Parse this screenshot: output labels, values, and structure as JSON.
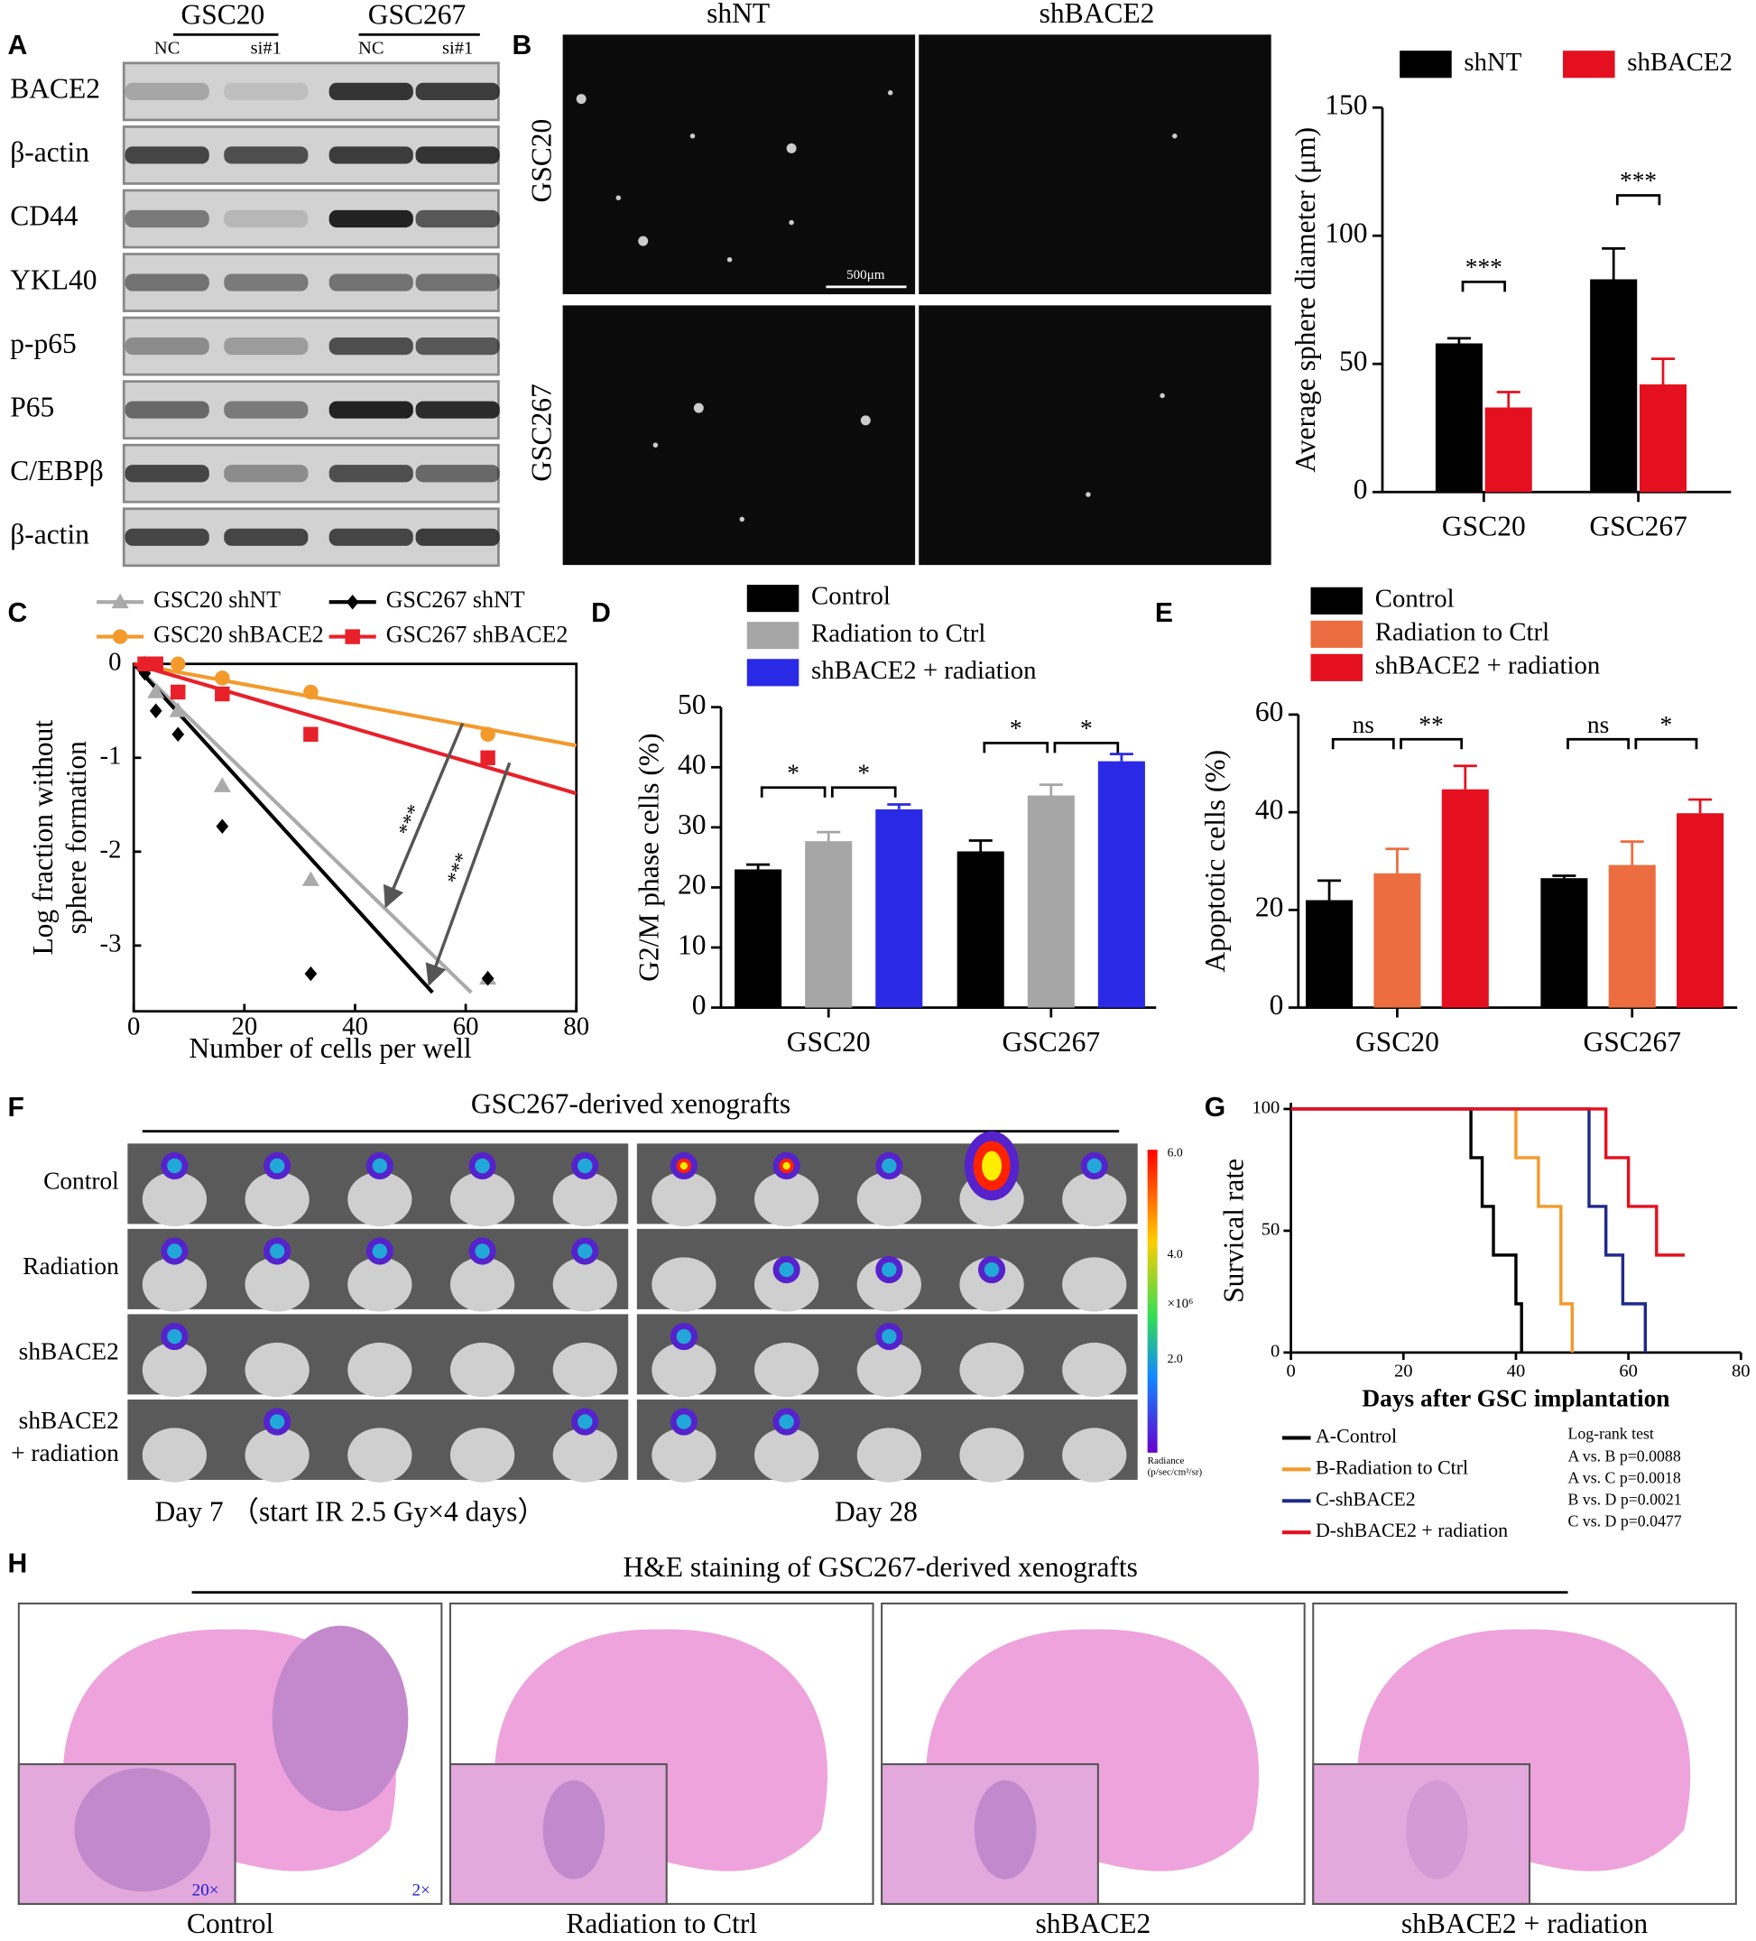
{
  "panel_labels": [
    "A",
    "B",
    "C",
    "D",
    "E",
    "F",
    "G",
    "H"
  ],
  "blot": {
    "groups": [
      "GSC20",
      "GSC267"
    ],
    "lanes": [
      "NC",
      "si#1",
      "NC",
      "si#1"
    ],
    "rows": [
      "BACE2",
      "β-actin",
      "CD44",
      "YKL40",
      "p-p65",
      "P65",
      "C/EBPβ",
      "β-actin"
    ]
  },
  "sphere_images": {
    "columns": [
      "shNT",
      "shBACE2"
    ],
    "rows": [
      "GSC20",
      "GSC267"
    ],
    "scale_bar": "500μm"
  },
  "xenograft": {
    "title": "GSC267-derived xenografts",
    "row_labels": [
      [
        "Control"
      ],
      [
        "Radiation"
      ],
      [
        "shBACE2"
      ],
      [
        "shBACE2",
        "+ radiation"
      ]
    ],
    "day_labels": [
      "Day 7 （start IR 2.5 Gy×4 days）",
      "Day 28"
    ],
    "colorbar": {
      "ticks": [
        "6.0",
        "4.0",
        "2.0"
      ],
      "unit": "×10⁶",
      "label": "Radiance",
      "unit_label": "(p/sec/cm²/sr)"
    }
  },
  "he": {
    "title": "H&E staining of GSC267-derived xenografts",
    "captions": [
      "Control",
      "Radiation to Ctrl",
      "shBACE2",
      "shBACE2 + radiation"
    ],
    "inset_magnification": "20×",
    "magnification": "2×"
  },
  "survival_test": {
    "title": "Log-rank test",
    "lines": [
      "A vs. B p=0.0088",
      "A vs. C p=0.0018",
      "B vs. D p=0.0021",
      "C vs. D p=0.0477"
    ]
  },
  "chart_data": [
    {
      "type": "bar",
      "ylabel": "Average sphere diameter (μm)",
      "categories": [
        "GSC20",
        "GSC267"
      ],
      "series": [
        {
          "name": "shNT",
          "color": "#000000",
          "values": [
            58,
            83
          ],
          "errors": [
            2,
            12
          ]
        },
        {
          "name": "shBACE2",
          "color": "#e5101f",
          "values": [
            33,
            42
          ],
          "errors": [
            6,
            10
          ]
        }
      ],
      "ylim": [
        0,
        150
      ],
      "yticks": [
        0,
        50,
        100,
        150
      ],
      "annotations": [
        "***",
        "***"
      ]
    },
    {
      "type": "scatter",
      "xlabel": "Number of cells per well",
      "ylabel": [
        "Log fraction without",
        "sphere formation"
      ],
      "series": [
        {
          "name": "GSC20 shNT",
          "color": "#aaaaaa",
          "marker": "triangle",
          "x": [
            2,
            4,
            8,
            16,
            32,
            64
          ],
          "values": [
            0,
            -0.3,
            -0.5,
            -1.3,
            -2.3,
            -3.35
          ],
          "fit_x": [
            0,
            61
          ],
          "fit_y": [
            0,
            -3.5
          ]
        },
        {
          "name": "GSC267 shNT",
          "color": "#000000",
          "marker": "diamond",
          "x": [
            2,
            4,
            8,
            16,
            32,
            64
          ],
          "values": [
            -0.1,
            -0.5,
            -0.75,
            -1.73,
            -3.3,
            -3.35
          ],
          "fit_x": [
            0,
            54
          ],
          "fit_y": [
            0,
            -3.5
          ]
        },
        {
          "name": "GSC20 shBACE2",
          "color": "#f39a2b",
          "marker": "circle",
          "x": [
            2,
            4,
            8,
            16,
            32,
            64
          ],
          "values": [
            0,
            0,
            0,
            -0.15,
            -0.3,
            -0.75
          ],
          "fit_x": [
            0,
            80
          ],
          "fit_y": [
            0,
            -0.87
          ]
        },
        {
          "name": "GSC267 shBACE2",
          "color": "#e8202a",
          "marker": "square",
          "x": [
            2,
            4,
            8,
            16,
            32,
            64
          ],
          "values": [
            0,
            0,
            -0.3,
            -0.32,
            -0.75,
            -1.0
          ],
          "fit_x": [
            0,
            80
          ],
          "fit_y": [
            0,
            -1.38
          ]
        }
      ],
      "xlim": [
        0,
        80
      ],
      "xticks": [
        0,
        20,
        40,
        60,
        80
      ],
      "ylim": [
        -3.7,
        0
      ],
      "yticks": [
        0,
        -1,
        -2,
        -3
      ],
      "annotations": [
        "***",
        "***"
      ]
    },
    {
      "type": "bar",
      "ylabel": "G2/M phase cells (%)",
      "categories": [
        "GSC20",
        "GSC267"
      ],
      "series": [
        {
          "name": "Control",
          "color": "#000000",
          "values": [
            23,
            26
          ],
          "errors": [
            0.8,
            1.8
          ]
        },
        {
          "name": "Radiation to Ctrl",
          "color": "#a6a6a6",
          "values": [
            27.7,
            35.3
          ],
          "errors": [
            1.5,
            1.8
          ]
        },
        {
          "name": "shBACE2 + radiation",
          "color": "#2a2ae6",
          "values": [
            33,
            41
          ],
          "errors": [
            0.8,
            1.2
          ]
        }
      ],
      "ylim": [
        0,
        50
      ],
      "yticks": [
        0,
        10,
        20,
        30,
        40,
        50
      ],
      "annotations": [
        "*",
        "*",
        "*",
        "*"
      ]
    },
    {
      "type": "bar",
      "ylabel": "Apoptotic cells (%)",
      "categories": [
        "GSC20",
        "GSC267"
      ],
      "series": [
        {
          "name": "Control",
          "color": "#000000",
          "values": [
            22,
            26.5
          ],
          "errors": [
            4,
            0.5
          ]
        },
        {
          "name": "Radiation to Ctrl",
          "color": "#ec6d3f",
          "values": [
            27.5,
            29.2
          ],
          "errors": [
            5,
            4.8
          ]
        },
        {
          "name": "shBACE2 + radiation",
          "color": "#e5101f",
          "values": [
            44.7,
            39.8
          ],
          "errors": [
            4.8,
            2.8
          ]
        }
      ],
      "ylim": [
        0,
        60
      ],
      "yticks": [
        0,
        20,
        40,
        60
      ],
      "annotations": [
        "ns",
        "**",
        "ns",
        "*"
      ]
    },
    {
      "type": "step",
      "xlabel": "Days after GSC implantation",
      "ylabel": "Survical rate",
      "series": [
        {
          "name": "A-Control",
          "color": "#000000",
          "x": [
            0,
            32,
            34,
            36,
            40,
            41
          ],
          "values": [
            100,
            80,
            60,
            40,
            20,
            0
          ]
        },
        {
          "name": "B-Radiation to Ctrl",
          "color": "#f39a2b",
          "x": [
            0,
            40,
            44,
            48,
            50
          ],
          "values": [
            100,
            80,
            60,
            20,
            0
          ]
        },
        {
          "name": "C-shBACE2",
          "color": "#1f2a8c",
          "x": [
            0,
            53,
            56,
            59,
            63
          ],
          "values": [
            100,
            60,
            40,
            20,
            0
          ]
        },
        {
          "name": "D-shBACE2 + radiation",
          "color": "#e5101f",
          "x": [
            0,
            56,
            60,
            65,
            70
          ],
          "values": [
            100,
            80,
            60,
            40,
            40
          ]
        }
      ],
      "xlim": [
        0,
        80
      ],
      "xticks": [
        0,
        20,
        40,
        60,
        80
      ],
      "ylim": [
        0,
        100
      ],
      "yticks": [
        0,
        50,
        100
      ]
    }
  ]
}
